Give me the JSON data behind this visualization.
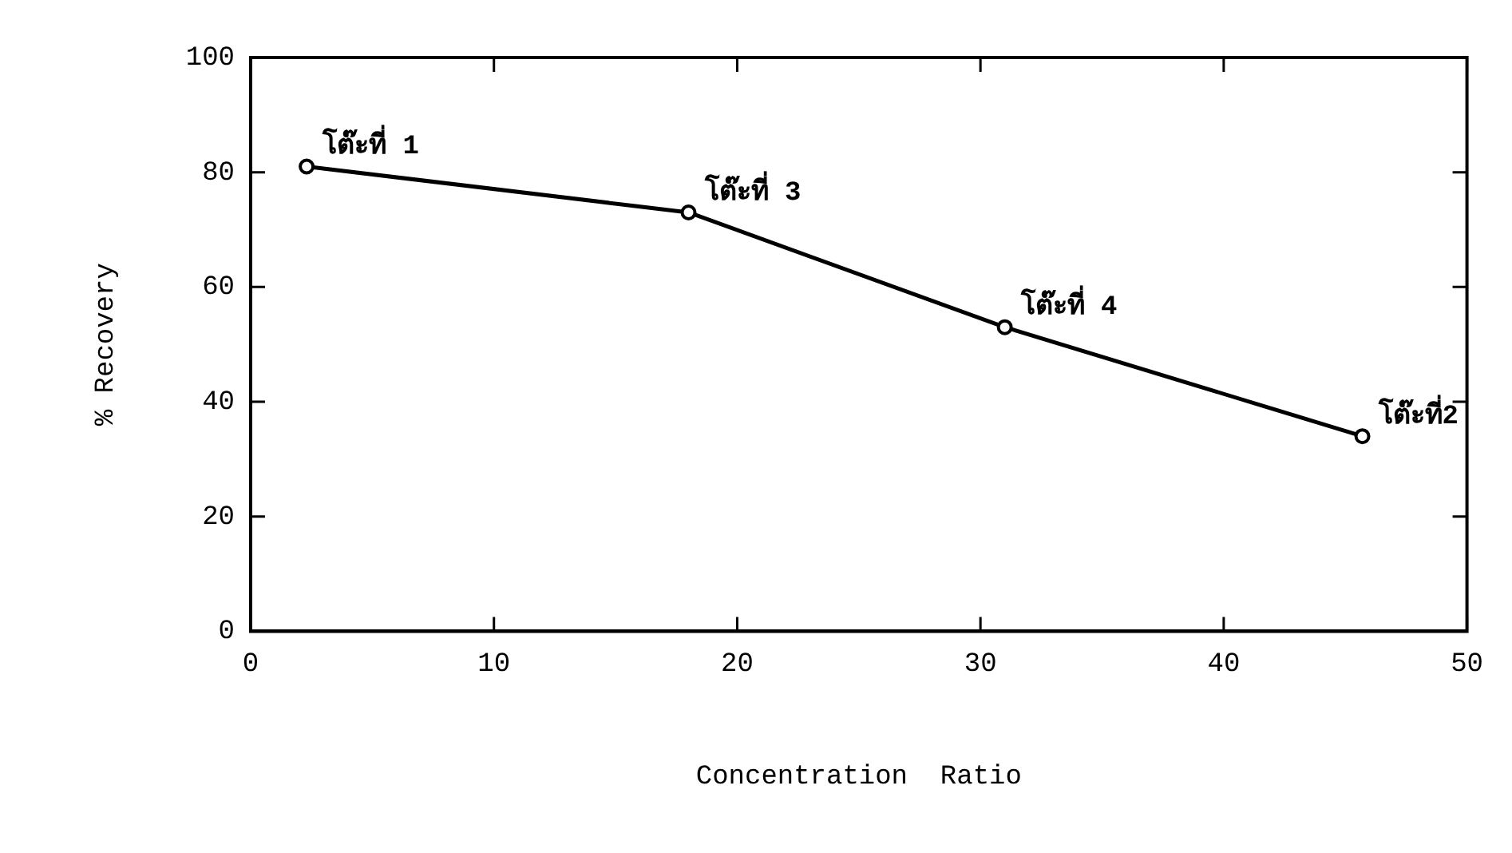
{
  "chart_data": {
    "type": "line",
    "xlabel": "Concentration  Ratio",
    "ylabel": "% Recovery",
    "x": [
      2.3,
      18,
      31,
      45.7
    ],
    "series": [
      {
        "color": "#000000",
        "values": [
          81,
          73,
          53,
          34
        ]
      }
    ],
    "xlim": [
      0,
      50
    ],
    "xticks": [
      0,
      10,
      20,
      30,
      40,
      50
    ],
    "ylim": [
      0,
      100
    ],
    "yticks": [
      0,
      20,
      40,
      60,
      80,
      100
    ],
    "grid": false,
    "legend": false,
    "marker": "circle",
    "line_style": "solid",
    "annotations": [
      {
        "text": "โต๊ะที่ 1",
        "x": 2.3,
        "y": 81
      },
      {
        "text": "โต๊ะที่ 3",
        "x": 18,
        "y": 73
      },
      {
        "text": "โต๊ะที่ 4",
        "x": 31,
        "y": 53
      },
      {
        "text": "โต๊ะที่2",
        "x": 45.7,
        "y": 34
      }
    ]
  }
}
